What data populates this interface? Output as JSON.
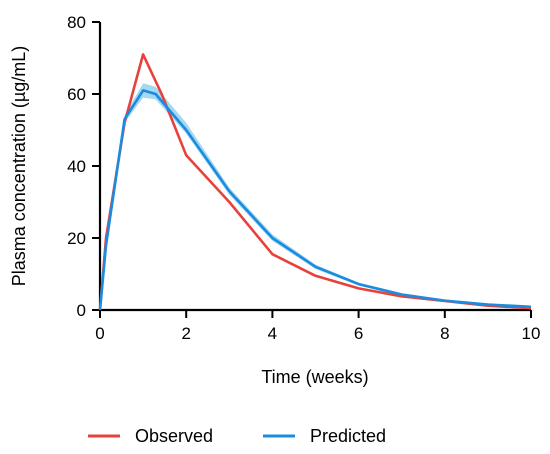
{
  "chart_data": {
    "type": "line",
    "title": "",
    "xlabel": "Time (weeks)",
    "ylabel": "Plasma concentration (µg/mL)",
    "xlim": [
      0,
      10
    ],
    "ylim": [
      0,
      80
    ],
    "xticks": [
      0,
      2,
      4,
      6,
      8,
      10
    ],
    "yticks": [
      0,
      20,
      40,
      60,
      80
    ],
    "grid": false,
    "legend_placement": "bottom",
    "series": [
      {
        "name": "Observed",
        "color": "#e8413c",
        "x": [
          0,
          0.14,
          0.57,
          1.0,
          1.43,
          2.0,
          3.0,
          4.0,
          5.0,
          6.0,
          7.0,
          8.0,
          9.0,
          10.0
        ],
        "y": [
          0,
          20,
          52,
          71,
          60,
          43,
          30,
          15.5,
          9.5,
          6,
          3.8,
          2.5,
          1.2,
          0.5
        ]
      },
      {
        "name": "Predicted",
        "color": "#1a8ce0",
        "band_color": "#a6d8f0",
        "x": [
          0,
          0.14,
          0.57,
          1.0,
          1.29,
          2.0,
          3.0,
          4.0,
          5.0,
          6.0,
          7.0,
          8.0,
          9.0,
          10.0
        ],
        "y": [
          0,
          18,
          53,
          61,
          60,
          50,
          33,
          20,
          12,
          7.2,
          4.3,
          2.6,
          1.5,
          0.9
        ],
        "lower": [
          0,
          17,
          52,
          59,
          58.5,
          49,
          32,
          19.2,
          11.4,
          6.8,
          4.0,
          2.4,
          1.3,
          0.8
        ],
        "upper": [
          0,
          19,
          54,
          63,
          62,
          52,
          34,
          21,
          12.6,
          7.6,
          4.6,
          2.8,
          1.7,
          1.0
        ]
      }
    ]
  }
}
